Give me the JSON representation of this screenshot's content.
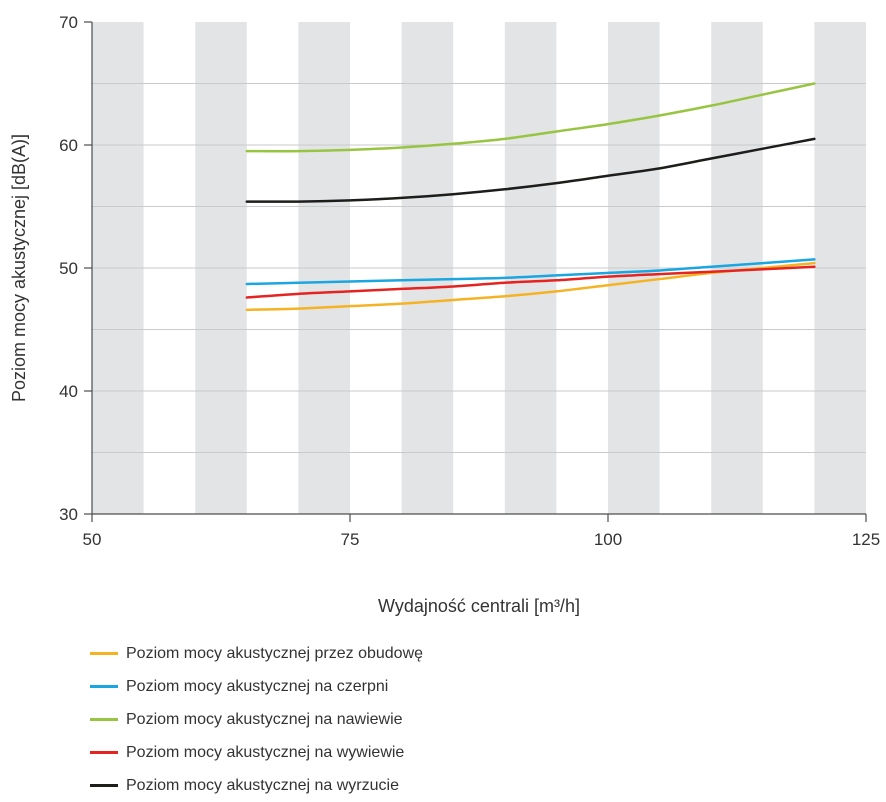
{
  "chart_data": {
    "type": "line",
    "title": "",
    "xlabel": "Wydajność centrali [m³/h]",
    "ylabel": "Poziom mocy akustycznej [dB(A)]",
    "xlim": [
      50,
      125
    ],
    "ylim": [
      30,
      70
    ],
    "xticks": [
      50,
      75,
      100,
      125
    ],
    "yticks": [
      30,
      40,
      50,
      60,
      70
    ],
    "grid": true,
    "legend_position": "bottom",
    "series": [
      {
        "name": "Poziom mocy akustycznej przez obudowę",
        "color": "#f5b324",
        "x": [
          65,
          70,
          75,
          80,
          85,
          90,
          95,
          100,
          105,
          110,
          115,
          120
        ],
        "y": [
          46.6,
          46.7,
          46.9,
          47.1,
          47.4,
          47.7,
          48.1,
          48.6,
          49.1,
          49.6,
          50.0,
          50.4
        ]
      },
      {
        "name": "Poziom mocy akustycznej na czerpni",
        "color": "#1aa6e0",
        "x": [
          65,
          70,
          75,
          80,
          85,
          90,
          95,
          100,
          105,
          110,
          115,
          120
        ],
        "y": [
          48.7,
          48.8,
          48.9,
          49.0,
          49.1,
          49.2,
          49.4,
          49.6,
          49.8,
          50.1,
          50.4,
          50.7
        ]
      },
      {
        "name": "Poziom mocy akustycznej na nawiewie",
        "color": "#98c541",
        "x": [
          65,
          70,
          75,
          80,
          85,
          90,
          95,
          100,
          105,
          110,
          115,
          120
        ],
        "y": [
          59.5,
          59.5,
          59.6,
          59.8,
          60.1,
          60.5,
          61.1,
          61.7,
          62.4,
          63.2,
          64.1,
          65.0
        ]
      },
      {
        "name": "Poziom mocy akustycznej na wywiewie",
        "color": "#e52421",
        "x": [
          65,
          70,
          75,
          80,
          85,
          90,
          95,
          100,
          105,
          110,
          115,
          120
        ],
        "y": [
          47.6,
          47.9,
          48.1,
          48.3,
          48.5,
          48.8,
          49.0,
          49.3,
          49.5,
          49.7,
          49.9,
          50.1
        ]
      },
      {
        "name": "Poziom mocy akustycznej na wyrzucie",
        "color": "#1d1d1b",
        "x": [
          65,
          70,
          75,
          80,
          85,
          90,
          95,
          100,
          105,
          110,
          115,
          120
        ],
        "y": [
          55.4,
          55.4,
          55.5,
          55.7,
          56.0,
          56.4,
          56.9,
          57.5,
          58.1,
          58.9,
          59.7,
          60.5
        ]
      }
    ]
  }
}
